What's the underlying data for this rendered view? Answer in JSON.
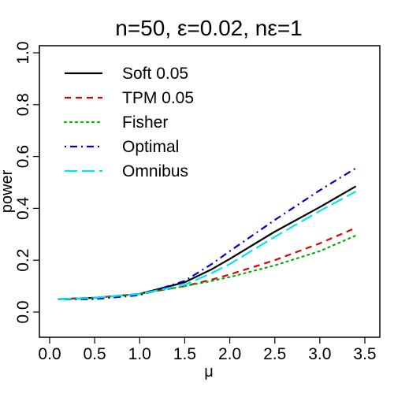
{
  "chart_data": {
    "type": "line",
    "title": "n=50, ε=0.02, nε=1",
    "xlabel": "μ",
    "ylabel": "power",
    "xlim": [
      0.0,
      3.5
    ],
    "ylim": [
      0.0,
      1.0
    ],
    "xticks": [
      "0.0",
      "0.5",
      "1.0",
      "1.5",
      "2.0",
      "2.5",
      "3.0",
      "3.5"
    ],
    "yticks": [
      "0.0",
      "0.2",
      "0.4",
      "0.6",
      "0.8",
      "1.0"
    ],
    "grid": false,
    "legend_position": "top-left",
    "x": [
      0.1,
      0.5,
      1.0,
      1.5,
      1.8,
      2.0,
      2.5,
      3.0,
      3.4
    ],
    "series": [
      {
        "name": "Soft 0.05",
        "color": "#000000",
        "dash": "solid",
        "values": [
          0.05,
          0.055,
          0.07,
          0.115,
          0.165,
          0.205,
          0.31,
          0.405,
          0.485
        ]
      },
      {
        "name": "TPM 0.05",
        "color": "#DF0000",
        "dash": "dashed",
        "values": [
          0.05,
          0.055,
          0.07,
          0.1,
          0.125,
          0.145,
          0.2,
          0.265,
          0.325
        ]
      },
      {
        "name": "Fisher",
        "color": "#00B000",
        "dash": "dotted",
        "values": [
          0.05,
          0.055,
          0.07,
          0.1,
          0.12,
          0.135,
          0.18,
          0.235,
          0.295
        ]
      },
      {
        "name": "Optimal",
        "color": "#0000CC",
        "dash": "dotdash",
        "values": [
          0.05,
          0.05,
          0.065,
          0.12,
          0.185,
          0.235,
          0.355,
          0.47,
          0.555
        ]
      },
      {
        "name": "Omnibus",
        "color": "#00E5EE",
        "dash": "longdash",
        "values": [
          0.05,
          0.055,
          0.07,
          0.105,
          0.15,
          0.185,
          0.29,
          0.39,
          0.465
        ]
      }
    ]
  }
}
